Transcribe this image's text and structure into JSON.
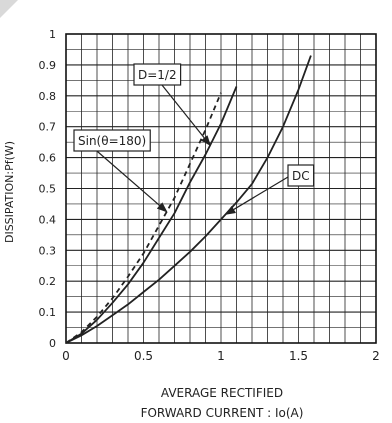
{
  "chart_data": {
    "type": "line",
    "title": "",
    "xlabel_line1": "AVERAGE RECTIFIED",
    "xlabel_line2": "FORWARD CURRENT : Io(A)",
    "ylabel": "DISSIPATION:Pf(W)",
    "xlim": [
      0,
      2
    ],
    "ylim": [
      0,
      1
    ],
    "x_ticks": [
      "0",
      "0.5",
      "1",
      "1.5",
      "2"
    ],
    "y_ticks": [
      "0",
      "0.1",
      "0.2",
      "0.3",
      "0.4",
      "0.5",
      "0.6",
      "0.7",
      "0.8",
      "0.9",
      "1"
    ],
    "grid": true,
    "series": [
      {
        "name": "D=1/2",
        "line_style": "solid",
        "x": [
          0,
          0.1,
          0.2,
          0.3,
          0.4,
          0.5,
          0.6,
          0.7,
          0.8,
          0.9,
          1.0,
          1.1
        ],
        "y": [
          0,
          0.03,
          0.075,
          0.13,
          0.19,
          0.26,
          0.34,
          0.42,
          0.52,
          0.61,
          0.71,
          0.83
        ]
      },
      {
        "name": "Sin(θ=180)",
        "line_style": "dashed",
        "x": [
          0,
          0.1,
          0.2,
          0.3,
          0.4,
          0.5,
          0.6,
          0.7,
          0.8,
          0.9,
          1.0
        ],
        "y": [
          0,
          0.035,
          0.085,
          0.145,
          0.215,
          0.29,
          0.38,
          0.47,
          0.58,
          0.69,
          0.81
        ]
      },
      {
        "name": "DC",
        "line_style": "solid",
        "x": [
          0,
          0.1,
          0.2,
          0.3,
          0.4,
          0.5,
          0.6,
          0.7,
          0.8,
          0.9,
          1.0,
          1.1,
          1.2,
          1.3,
          1.4,
          1.5,
          1.58
        ],
        "y": [
          0,
          0.025,
          0.055,
          0.09,
          0.125,
          0.165,
          0.205,
          0.25,
          0.295,
          0.345,
          0.4,
          0.455,
          0.515,
          0.6,
          0.7,
          0.82,
          0.93
        ]
      }
    ],
    "annotations": [
      {
        "text": "D=1/2",
        "target_series": 0,
        "target_x": 0.93
      },
      {
        "text": "Sin(θ=180)",
        "target_series": 1,
        "target_x": 0.65
      },
      {
        "text": "DC",
        "target_series": 2,
        "target_x": 1.03
      }
    ],
    "colors": {
      "line": "#222222",
      "grid": "#222222",
      "axis": "#111111"
    }
  }
}
